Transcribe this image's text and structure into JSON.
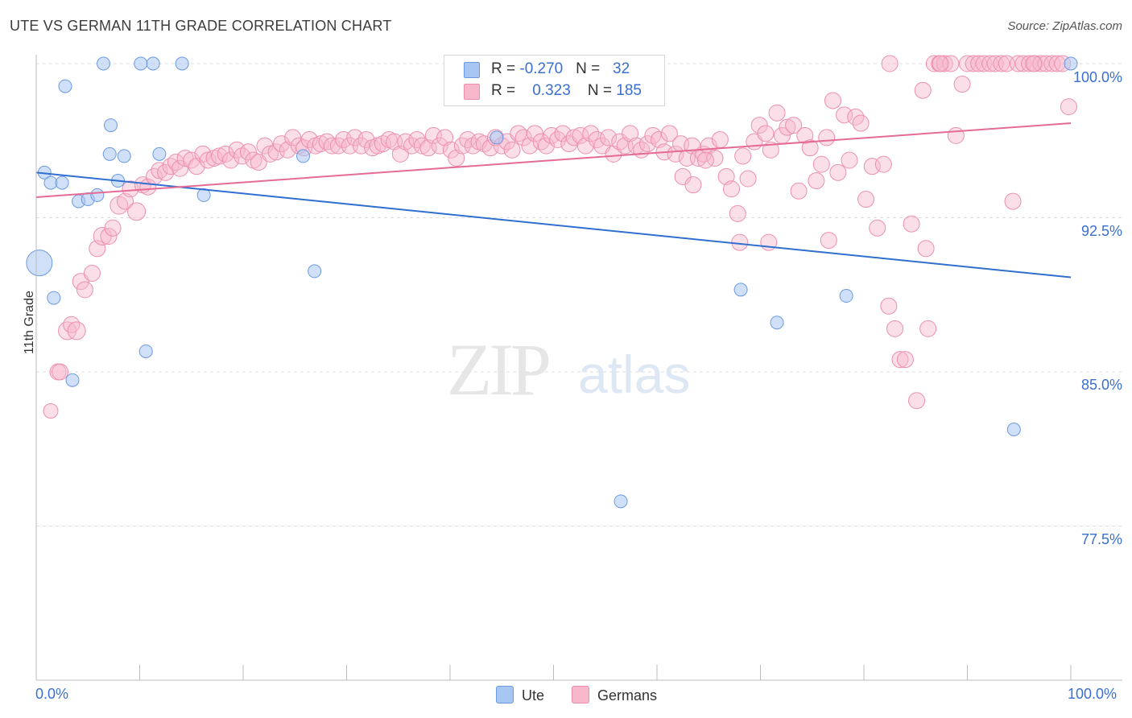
{
  "header": {
    "title": "UTE VS GERMAN 11TH GRADE CORRELATION CHART",
    "source": "Source: ZipAtlas.com"
  },
  "colors": {
    "ute_fill": "#a8c6f2",
    "ute_stroke": "#6c9ae0",
    "ute_line": "#2f6fd0",
    "german_fill": "#f7b8cb",
    "german_stroke": "#ec8fae",
    "german_line": "#e56b95",
    "grid": "#dddddd",
    "axis_text": "#3a6fd1"
  },
  "legend": {
    "ute": {
      "r_label": "R = ",
      "r_value": "-0.270",
      "n_label": "N = ",
      "n_value": "32"
    },
    "german": {
      "r_label": "R = ",
      "r_value": "0.323",
      "n_label": "N = ",
      "n_value": "185"
    }
  },
  "chart_data": {
    "type": "scatter",
    "title": "UTE VS GERMAN 11TH GRADE CORRELATION CHART",
    "xlabel": "",
    "ylabel": "11th Grade",
    "xlim": [
      0,
      100
    ],
    "ylim": [
      70,
      101.5
    ],
    "x_tick_labels": [
      "0.0%",
      "100.0%"
    ],
    "y_ticks": [
      77.5,
      85.0,
      92.5,
      100.0
    ],
    "y_tick_labels": [
      "77.5%",
      "85.0%",
      "92.5%",
      "100.0%"
    ],
    "grid": true,
    "legend_position": "top-center",
    "series": [
      {
        "name": "Ute",
        "trend": {
          "x": [
            0,
            100
          ],
          "y": [
            94.7,
            89.6
          ]
        },
        "points": [
          [
            0.3,
            90.3,
            16
          ],
          [
            0.8,
            94.7,
            8
          ],
          [
            1.4,
            94.2,
            8
          ],
          [
            1.7,
            88.6,
            8
          ],
          [
            2.5,
            94.2,
            8
          ],
          [
            2.8,
            98.9,
            8
          ],
          [
            3.5,
            84.6,
            8
          ],
          [
            4.1,
            93.3,
            8
          ],
          [
            5.0,
            93.4,
            8
          ],
          [
            5.9,
            93.6,
            8
          ],
          [
            6.5,
            100.0,
            8
          ],
          [
            7.1,
            95.6,
            8
          ],
          [
            7.2,
            97.0,
            8
          ],
          [
            7.9,
            94.3,
            8
          ],
          [
            8.5,
            95.5,
            8
          ],
          [
            10.1,
            100.0,
            8
          ],
          [
            10.6,
            86.0,
            8
          ],
          [
            11.3,
            100.0,
            8
          ],
          [
            11.9,
            95.6,
            8
          ],
          [
            14.1,
            100.0,
            8
          ],
          [
            16.2,
            93.6,
            8
          ],
          [
            25.8,
            95.5,
            8
          ],
          [
            26.9,
            89.9,
            8
          ],
          [
            44.5,
            96.4,
            8
          ],
          [
            54.6,
            100.0,
            8
          ],
          [
            56.5,
            78.7,
            8
          ],
          [
            68.1,
            89.0,
            8
          ],
          [
            71.6,
            87.4,
            8
          ],
          [
            78.3,
            88.7,
            8
          ],
          [
            94.5,
            82.2,
            8
          ],
          [
            100.0,
            100.0,
            8
          ]
        ]
      },
      {
        "name": "Germans",
        "trend": {
          "x": [
            0,
            100
          ],
          "y": [
            93.5,
            97.1
          ]
        },
        "points": [
          [
            1.4,
            83.1,
            9
          ],
          [
            2.1,
            85.0,
            10
          ],
          [
            2.3,
            85.0,
            10
          ],
          [
            3.0,
            87.0,
            11
          ],
          [
            3.4,
            87.3,
            10
          ],
          [
            3.9,
            87.0,
            11
          ],
          [
            4.3,
            89.4,
            10
          ],
          [
            4.7,
            89.0,
            10
          ],
          [
            5.4,
            89.8,
            10
          ],
          [
            5.9,
            91.0,
            10
          ],
          [
            6.4,
            91.6,
            11
          ],
          [
            7.0,
            91.6,
            10
          ],
          [
            7.4,
            92.0,
            10
          ],
          [
            8.0,
            93.1,
            11
          ],
          [
            8.6,
            93.3,
            10
          ],
          [
            9.1,
            93.9,
            10
          ],
          [
            9.7,
            92.8,
            11
          ],
          [
            10.3,
            94.1,
            10
          ],
          [
            10.8,
            94.0,
            10
          ],
          [
            11.4,
            94.5,
            10
          ],
          [
            11.9,
            94.8,
            10
          ],
          [
            12.5,
            94.7,
            10
          ],
          [
            13.0,
            95.0,
            10
          ],
          [
            13.5,
            95.2,
            10
          ],
          [
            13.9,
            94.9,
            10
          ],
          [
            14.4,
            95.4,
            10
          ],
          [
            15.0,
            95.3,
            10
          ],
          [
            15.5,
            95.0,
            10
          ],
          [
            16.1,
            95.6,
            10
          ],
          [
            16.6,
            95.3,
            10
          ],
          [
            17.2,
            95.4,
            10
          ],
          [
            17.7,
            95.5,
            10
          ],
          [
            18.3,
            95.6,
            10
          ],
          [
            18.8,
            95.3,
            10
          ],
          [
            19.4,
            95.8,
            10
          ],
          [
            19.9,
            95.5,
            10
          ],
          [
            20.5,
            95.7,
            10
          ],
          [
            21.0,
            95.3,
            10
          ],
          [
            21.5,
            95.2,
            10
          ],
          [
            22.1,
            96.0,
            10
          ],
          [
            22.6,
            95.6,
            10
          ],
          [
            23.2,
            95.7,
            10
          ],
          [
            23.7,
            96.1,
            10
          ],
          [
            24.3,
            95.8,
            10
          ],
          [
            24.8,
            96.4,
            10
          ],
          [
            25.4,
            96.0,
            10
          ],
          [
            25.9,
            95.9,
            10
          ],
          [
            26.4,
            96.3,
            10
          ],
          [
            27.0,
            96.0,
            10
          ],
          [
            27.5,
            96.1,
            10
          ],
          [
            28.1,
            96.2,
            10
          ],
          [
            28.6,
            96.0,
            10
          ],
          [
            29.2,
            96.0,
            10
          ],
          [
            29.7,
            96.3,
            10
          ],
          [
            30.3,
            96.0,
            10
          ],
          [
            30.8,
            96.4,
            10
          ],
          [
            31.4,
            96.0,
            10
          ],
          [
            31.9,
            96.3,
            10
          ],
          [
            32.5,
            95.9,
            10
          ],
          [
            33.0,
            96.0,
            10
          ],
          [
            33.5,
            96.1,
            10
          ],
          [
            34.1,
            96.3,
            10
          ],
          [
            34.6,
            96.2,
            10
          ],
          [
            35.2,
            95.6,
            10
          ],
          [
            35.7,
            96.2,
            10
          ],
          [
            36.3,
            96.0,
            10
          ],
          [
            36.8,
            96.3,
            10
          ],
          [
            37.3,
            96.0,
            10
          ],
          [
            37.9,
            95.9,
            10
          ],
          [
            38.4,
            96.5,
            10
          ],
          [
            39.0,
            96.0,
            10
          ],
          [
            39.5,
            96.4,
            10
          ],
          [
            40.1,
            95.8,
            10
          ],
          [
            40.6,
            95.4,
            10
          ],
          [
            41.2,
            96.0,
            10
          ],
          [
            41.7,
            96.3,
            10
          ],
          [
            42.2,
            96.0,
            10
          ],
          [
            42.8,
            96.2,
            10
          ],
          [
            43.3,
            96.1,
            10
          ],
          [
            43.9,
            95.9,
            10
          ],
          [
            44.4,
            96.4,
            10
          ],
          [
            45.0,
            96.0,
            10
          ],
          [
            45.5,
            96.2,
            10
          ],
          [
            46.0,
            95.8,
            10
          ],
          [
            46.6,
            96.6,
            10
          ],
          [
            47.1,
            96.4,
            10
          ],
          [
            47.7,
            96.0,
            10
          ],
          [
            48.2,
            96.6,
            10
          ],
          [
            48.8,
            96.2,
            10
          ],
          [
            49.3,
            96.0,
            10
          ],
          [
            49.8,
            96.5,
            10
          ],
          [
            50.4,
            96.3,
            10
          ],
          [
            50.9,
            96.6,
            10
          ],
          [
            51.5,
            96.1,
            10
          ],
          [
            52.0,
            96.4,
            10
          ],
          [
            52.6,
            96.5,
            10
          ],
          [
            53.1,
            96.0,
            10
          ],
          [
            53.6,
            96.6,
            10
          ],
          [
            54.2,
            96.3,
            10
          ],
          [
            54.7,
            96.0,
            10
          ],
          [
            55.3,
            96.4,
            10
          ],
          [
            55.8,
            95.6,
            10
          ],
          [
            56.4,
            96.2,
            10
          ],
          [
            56.9,
            96.0,
            10
          ],
          [
            57.4,
            96.6,
            10
          ],
          [
            58.0,
            96.0,
            10
          ],
          [
            58.5,
            95.8,
            10
          ],
          [
            59.1,
            96.1,
            10
          ],
          [
            59.6,
            96.5,
            10
          ],
          [
            60.2,
            96.3,
            10
          ],
          [
            60.7,
            95.7,
            10
          ],
          [
            61.2,
            96.6,
            10
          ],
          [
            61.8,
            95.6,
            10
          ],
          [
            62.3,
            96.1,
            10
          ],
          [
            62.9,
            95.4,
            10
          ],
          [
            63.4,
            96.0,
            10
          ],
          [
            64.0,
            95.4,
            10
          ],
          [
            64.5,
            95.6,
            10
          ],
          [
            65.0,
            96.0,
            10
          ],
          [
            65.6,
            95.4,
            10
          ],
          [
            66.1,
            96.3,
            10
          ],
          [
            66.7,
            94.5,
            10
          ],
          [
            67.2,
            93.9,
            10
          ],
          [
            67.8,
            92.7,
            10
          ],
          [
            68.3,
            95.5,
            10
          ],
          [
            68.8,
            94.4,
            10
          ],
          [
            69.4,
            96.2,
            10
          ],
          [
            69.9,
            97.0,
            10
          ],
          [
            70.5,
            96.6,
            10
          ],
          [
            71.0,
            95.8,
            10
          ],
          [
            71.6,
            97.6,
            10
          ],
          [
            72.1,
            96.5,
            10
          ],
          [
            72.6,
            96.9,
            10
          ],
          [
            73.2,
            97.0,
            10
          ],
          [
            73.7,
            93.8,
            10
          ],
          [
            74.3,
            96.5,
            10
          ],
          [
            74.8,
            95.9,
            10
          ],
          [
            75.4,
            94.3,
            10
          ],
          [
            75.9,
            95.1,
            10
          ],
          [
            76.4,
            96.4,
            10
          ],
          [
            77.0,
            98.2,
            10
          ],
          [
            77.5,
            94.7,
            10
          ],
          [
            78.1,
            97.5,
            10
          ],
          [
            78.6,
            95.3,
            10
          ],
          [
            79.2,
            97.4,
            10
          ],
          [
            79.7,
            97.1,
            10
          ],
          [
            80.2,
            93.4,
            10
          ],
          [
            80.8,
            95.0,
            10
          ],
          [
            81.3,
            92.0,
            10
          ],
          [
            81.9,
            95.1,
            10
          ],
          [
            82.4,
            88.2,
            10
          ],
          [
            83.0,
            87.1,
            10
          ],
          [
            83.5,
            85.6,
            10
          ],
          [
            84.0,
            85.6,
            10
          ],
          [
            84.6,
            92.2,
            10
          ],
          [
            85.1,
            83.6,
            10
          ],
          [
            85.7,
            98.7,
            10
          ],
          [
            86.2,
            87.1,
            10
          ],
          [
            86.8,
            100.0,
            10
          ],
          [
            87.3,
            100.0,
            10
          ],
          [
            87.8,
            100.0,
            10
          ],
          [
            88.4,
            100.0,
            10
          ],
          [
            88.9,
            96.5,
            10
          ],
          [
            89.5,
            99.0,
            10
          ],
          [
            90.0,
            100.0,
            10
          ],
          [
            90.6,
            100.0,
            10
          ],
          [
            91.1,
            100.0,
            10
          ],
          [
            91.6,
            100.0,
            10
          ],
          [
            92.2,
            100.0,
            10
          ],
          [
            92.7,
            100.0,
            10
          ],
          [
            93.3,
            100.0,
            10
          ],
          [
            93.8,
            100.0,
            10
          ],
          [
            94.4,
            93.3,
            10
          ],
          [
            94.9,
            100.0,
            10
          ],
          [
            95.4,
            100.0,
            10
          ],
          [
            96.0,
            100.0,
            10
          ],
          [
            96.5,
            100.0,
            10
          ],
          [
            97.1,
            100.0,
            10
          ],
          [
            97.6,
            100.0,
            10
          ],
          [
            98.2,
            100.0,
            10
          ],
          [
            98.7,
            100.0,
            10
          ],
          [
            99.2,
            100.0,
            10
          ],
          [
            99.8,
            97.9,
            10
          ],
          [
            82.5,
            100.0,
            10
          ],
          [
            87.4,
            100.0,
            10
          ],
          [
            96.4,
            100.0,
            10
          ],
          [
            62.5,
            94.5,
            10
          ],
          [
            64.7,
            95.3,
            10
          ],
          [
            68.0,
            91.3,
            10
          ],
          [
            70.8,
            91.3,
            10
          ],
          [
            76.6,
            91.4,
            10
          ],
          [
            86.0,
            91.0,
            10
          ],
          [
            63.5,
            94.1,
            10
          ]
        ]
      }
    ]
  },
  "bottom_legend": {
    "ute_label": "Ute",
    "german_label": "Germans"
  },
  "watermark": {
    "zip": "ZIP",
    "atlas": "atlas"
  }
}
